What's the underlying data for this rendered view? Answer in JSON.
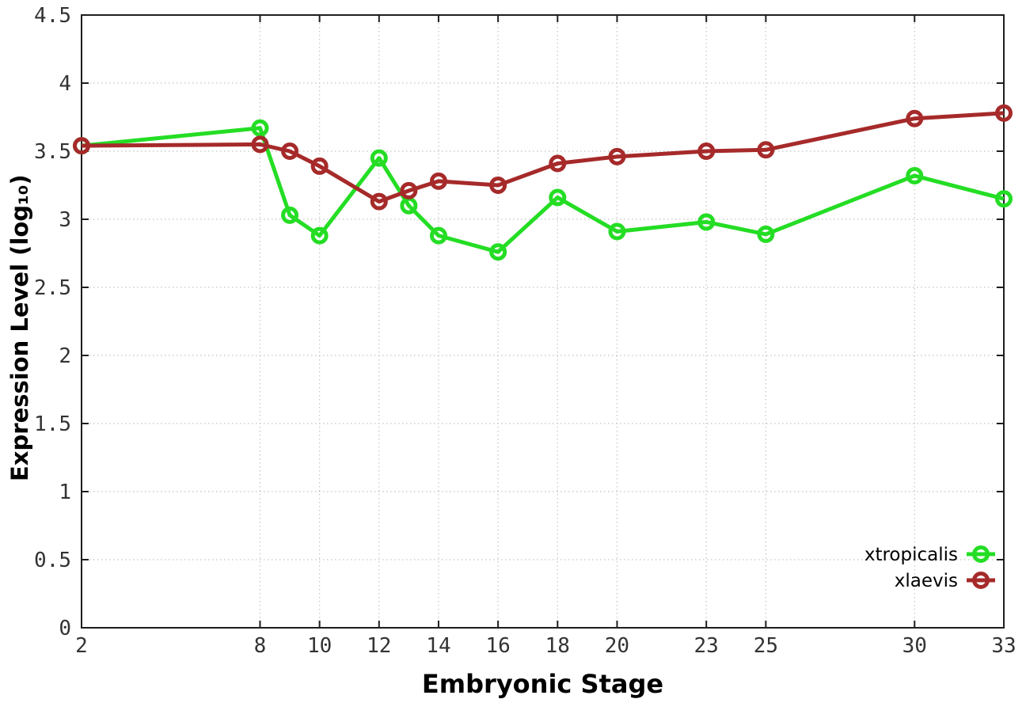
{
  "figure": {
    "background": "#ffffff"
  },
  "style": {
    "grid_color": "#c4c4c4",
    "axis_color": "#1e1e1e",
    "tick_label_color": "#333333",
    "legend_text_color": "#000000"
  },
  "chart_data": {
    "type": "line",
    "title": "",
    "xlabel": "Embryonic Stage",
    "ylabel": "Expression Level (log₁₀)",
    "xlim": [
      2,
      33
    ],
    "ylim": [
      0,
      4.5
    ],
    "grid": true,
    "legend_position": "bottom-right",
    "marker": "open-circle",
    "x": [
      2,
      8,
      9,
      10,
      12,
      13,
      14,
      16,
      18,
      20,
      23,
      25,
      30,
      33
    ],
    "xticks": [
      2,
      8,
      10,
      12,
      14,
      16,
      18,
      20,
      23,
      25,
      30,
      33
    ],
    "xtick_labels": [
      "2",
      "8",
      "10",
      "12",
      "14",
      "16",
      "18",
      "20",
      "23",
      "25",
      "30",
      "33"
    ],
    "yticks": [
      0,
      0.5,
      1,
      1.5,
      2,
      2.5,
      3,
      3.5,
      4,
      4.5
    ],
    "ytick_labels": [
      "0",
      "0.5",
      "1",
      "1.5",
      "2",
      "2.5",
      "3",
      "3.5",
      "4",
      "4.5"
    ],
    "series": [
      {
        "name": "xtropicalis",
        "color": "#24dd24",
        "values": [
          3.54,
          3.67,
          3.03,
          2.88,
          3.45,
          3.1,
          2.88,
          2.76,
          3.16,
          2.91,
          2.98,
          2.89,
          3.32,
          3.15
        ]
      },
      {
        "name": "xlaevis",
        "color": "#a62a2a",
        "values": [
          3.54,
          3.55,
          3.5,
          3.39,
          3.13,
          3.21,
          3.28,
          3.25,
          3.41,
          3.46,
          3.5,
          3.51,
          3.74,
          3.78
        ]
      }
    ]
  }
}
